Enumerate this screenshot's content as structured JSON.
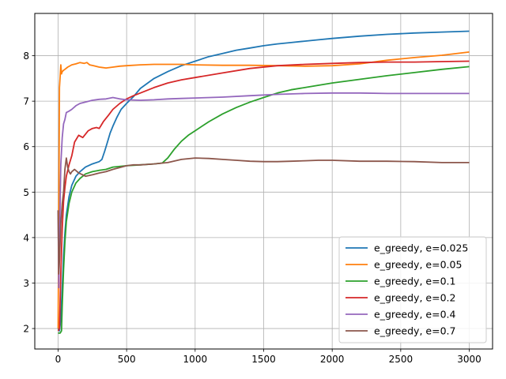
{
  "chart_data": {
    "type": "line",
    "title": "",
    "xlabel": "",
    "ylabel": "",
    "xlim": [
      -170,
      3170
    ],
    "ylim": [
      1.55,
      8.93
    ],
    "xticks": [
      0,
      500,
      1000,
      1500,
      2000,
      2500,
      3000
    ],
    "yticks": [
      2,
      3,
      4,
      5,
      6,
      7,
      8
    ],
    "grid": true,
    "legend_position": "lower-right",
    "series": [
      {
        "name": "e_greedy, e=0.025",
        "color": "#1f77b4",
        "x": [
          0,
          10,
          20,
          30,
          40,
          50,
          60,
          80,
          100,
          130,
          160,
          200,
          250,
          300,
          320,
          340,
          360,
          380,
          400,
          430,
          460,
          500,
          550,
          600,
          700,
          800,
          900,
          1000,
          1100,
          1200,
          1300,
          1400,
          1500,
          1600,
          1700,
          1800,
          1900,
          2000,
          2200,
          2400,
          2600,
          2800,
          3000
        ],
        "y": [
          2.0,
          1.95,
          2.2,
          2.9,
          3.6,
          4.1,
          4.5,
          4.9,
          5.15,
          5.35,
          5.45,
          5.55,
          5.62,
          5.67,
          5.72,
          5.9,
          6.1,
          6.3,
          6.45,
          6.65,
          6.82,
          6.95,
          7.1,
          7.28,
          7.5,
          7.65,
          7.78,
          7.88,
          7.98,
          8.05,
          8.12,
          8.17,
          8.22,
          8.26,
          8.29,
          8.32,
          8.35,
          8.38,
          8.43,
          8.47,
          8.5,
          8.52,
          8.54
        ]
      },
      {
        "name": "e_greedy, e=0.05",
        "color": "#ff7f0e",
        "x": [
          0,
          5,
          10,
          15,
          20,
          25,
          30,
          40,
          50,
          70,
          100,
          130,
          160,
          190,
          210,
          230,
          260,
          300,
          350,
          400,
          450,
          500,
          600,
          700,
          800,
          900,
          1000,
          1200,
          1400,
          1600,
          1800,
          2000,
          2200,
          2400,
          2600,
          2800,
          3000
        ],
        "y": [
          2.0,
          4.3,
          7.3,
          7.55,
          7.8,
          7.6,
          7.65,
          7.68,
          7.7,
          7.75,
          7.8,
          7.82,
          7.85,
          7.83,
          7.85,
          7.8,
          7.78,
          7.75,
          7.73,
          7.75,
          7.77,
          7.78,
          7.8,
          7.81,
          7.81,
          7.81,
          7.8,
          7.79,
          7.79,
          7.78,
          7.77,
          7.78,
          7.82,
          7.9,
          7.96,
          8.01,
          8.08
        ]
      },
      {
        "name": "e_greedy, e=0.1",
        "color": "#2ca02c",
        "x": [
          0,
          15,
          25,
          30,
          40,
          50,
          60,
          80,
          100,
          130,
          160,
          200,
          250,
          300,
          350,
          400,
          500,
          600,
          700,
          760,
          800,
          850,
          900,
          950,
          1000,
          1100,
          1200,
          1300,
          1400,
          1500,
          1600,
          1700,
          1800,
          1900,
          2000,
          2200,
          2400,
          2600,
          2800,
          3000
        ],
        "y": [
          1.9,
          1.9,
          1.95,
          2.5,
          3.3,
          3.9,
          4.35,
          4.75,
          5.0,
          5.2,
          5.3,
          5.4,
          5.45,
          5.48,
          5.5,
          5.55,
          5.58,
          5.6,
          5.62,
          5.64,
          5.75,
          5.95,
          6.12,
          6.25,
          6.35,
          6.55,
          6.72,
          6.86,
          6.98,
          7.08,
          7.18,
          7.25,
          7.3,
          7.35,
          7.4,
          7.48,
          7.56,
          7.63,
          7.7,
          7.76
        ]
      },
      {
        "name": "e_greedy, e=0.2",
        "color": "#d62728",
        "x": [
          0,
          10,
          20,
          30,
          40,
          50,
          60,
          80,
          100,
          120,
          150,
          180,
          220,
          250,
          280,
          300,
          330,
          370,
          400,
          450,
          500,
          550,
          600,
          700,
          800,
          900,
          1000,
          1200,
          1400,
          1600,
          1800,
          2000,
          2200,
          2400,
          2600,
          2800,
          3000
        ],
        "y": [
          1.95,
          2.0,
          3.2,
          4.2,
          4.8,
          5.1,
          5.35,
          5.6,
          5.8,
          6.1,
          6.25,
          6.2,
          6.35,
          6.4,
          6.42,
          6.4,
          6.55,
          6.7,
          6.82,
          6.95,
          7.05,
          7.12,
          7.18,
          7.3,
          7.4,
          7.47,
          7.52,
          7.62,
          7.72,
          7.78,
          7.81,
          7.83,
          7.85,
          7.86,
          7.86,
          7.87,
          7.88
        ]
      },
      {
        "name": "e_greedy, e=0.4",
        "color": "#9467bd",
        "x": [
          0,
          5,
          10,
          15,
          20,
          30,
          40,
          50,
          60,
          80,
          100,
          130,
          160,
          200,
          250,
          300,
          350,
          400,
          450,
          500,
          600,
          700,
          800,
          900,
          1000,
          1200,
          1400,
          1600,
          1800,
          2000,
          2200,
          2400,
          2600,
          2800,
          3000
        ],
        "y": [
          4.6,
          2.9,
          3.8,
          4.8,
          5.6,
          6.2,
          6.5,
          6.6,
          6.75,
          6.78,
          6.82,
          6.9,
          6.95,
          6.98,
          7.02,
          7.04,
          7.05,
          7.08,
          7.05,
          7.03,
          7.02,
          7.03,
          7.05,
          7.06,
          7.07,
          7.09,
          7.12,
          7.15,
          7.17,
          7.18,
          7.18,
          7.17,
          7.17,
          7.17,
          7.17
        ]
      },
      {
        "name": "e_greedy, e=0.7",
        "color": "#8c564b",
        "x": [
          0,
          5,
          10,
          20,
          30,
          40,
          50,
          60,
          70,
          80,
          90,
          100,
          120,
          150,
          180,
          200,
          250,
          300,
          350,
          400,
          500,
          550,
          600,
          700,
          800,
          900,
          1000,
          1100,
          1200,
          1300,
          1400,
          1500,
          1600,
          1700,
          1800,
          1900,
          2000,
          2200,
          2400,
          2600,
          2800,
          3000
        ],
        "y": [
          4.6,
          3.2,
          3.5,
          4.3,
          4.75,
          5.0,
          5.5,
          5.75,
          5.55,
          5.45,
          5.4,
          5.45,
          5.5,
          5.42,
          5.38,
          5.35,
          5.38,
          5.42,
          5.45,
          5.5,
          5.58,
          5.6,
          5.6,
          5.62,
          5.65,
          5.72,
          5.75,
          5.74,
          5.72,
          5.7,
          5.68,
          5.67,
          5.67,
          5.68,
          5.69,
          5.7,
          5.7,
          5.68,
          5.68,
          5.67,
          5.65,
          5.65
        ]
      }
    ]
  }
}
